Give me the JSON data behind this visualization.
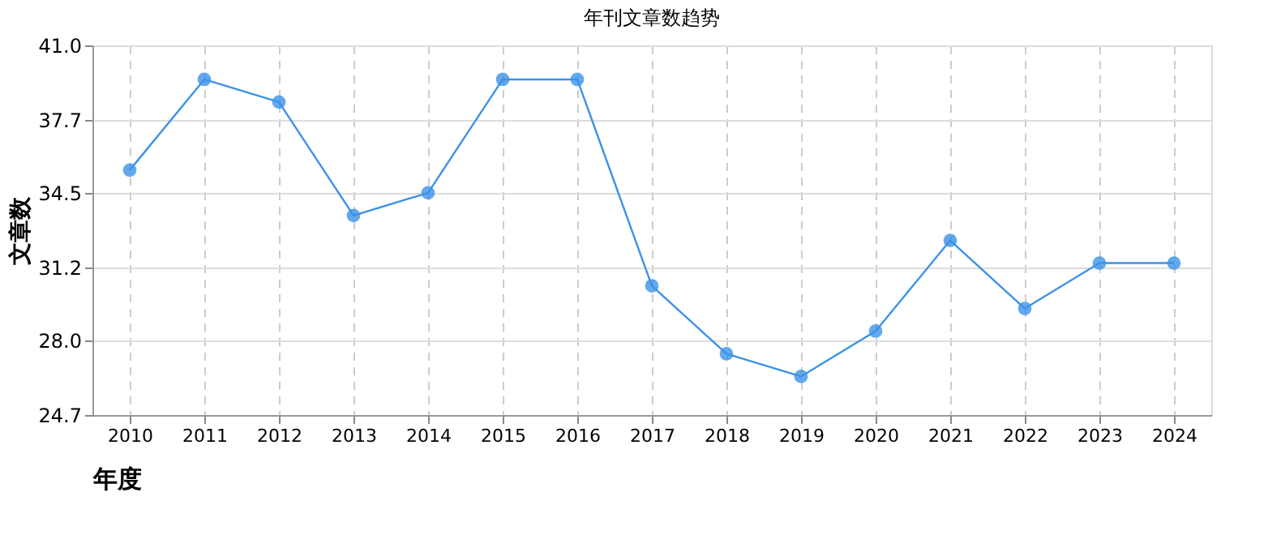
{
  "chart_data": {
    "type": "line",
    "title": "年刊文章数趋势",
    "xlabel": "年度",
    "ylabel": "文章数",
    "categories": [
      "2010",
      "2011",
      "2012",
      "2013",
      "2014",
      "2015",
      "2016",
      "2017",
      "2018",
      "2019",
      "2020",
      "2021",
      "2022",
      "2023",
      "2024"
    ],
    "series": [
      {
        "color": "#3c92e8",
        "values": [
          35.5,
          39.5,
          38.5,
          33.5,
          34.5,
          39.5,
          39.5,
          30.4,
          27.4,
          26.4,
          28.4,
          32.4,
          29.4,
          31.4,
          31.4
        ]
      }
    ],
    "ylim": [
      24.7,
      41.0
    ],
    "yticks": [
      {
        "value": 24.7,
        "label": "24.7"
      },
      {
        "value": 28,
        "label": "28.0"
      },
      {
        "value": 31.2,
        "label": "31.2"
      },
      {
        "value": 34.5,
        "label": "34.5"
      },
      {
        "value": 37.7,
        "label": "37.7"
      },
      {
        "value": 41,
        "label": "41.0"
      }
    ],
    "grid": true,
    "marker": "circle",
    "line_style": "solid",
    "legend": false
  }
}
